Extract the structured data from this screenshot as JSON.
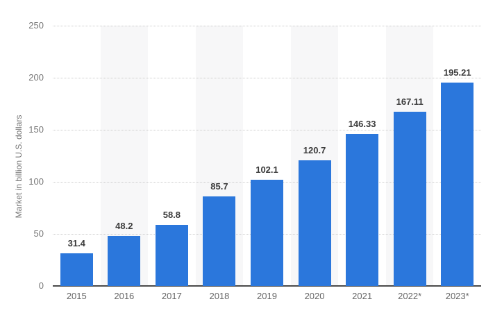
{
  "chart_data": {
    "type": "bar",
    "title": "",
    "xlabel": "",
    "ylabel": "Market in billion U.S. dollars",
    "categories": [
      "2015",
      "2016",
      "2017",
      "2018",
      "2019",
      "2020",
      "2021",
      "2022*",
      "2023*"
    ],
    "values": [
      31.4,
      48.2,
      58.8,
      85.7,
      102.1,
      120.7,
      146.33,
      167.11,
      195.21
    ],
    "value_labels": [
      "31.4",
      "48.2",
      "58.8",
      "85.7",
      "102.1",
      "120.7",
      "146.33",
      "167.11",
      "195.21"
    ],
    "ylim": [
      0,
      250
    ],
    "ytick_values": [
      0,
      50,
      100,
      150,
      200,
      250
    ],
    "ytick_labels": [
      "0",
      "50",
      "100",
      "150",
      "200",
      "250"
    ],
    "grid": "horizontal-dotted",
    "legend": "none",
    "banded_columns": [
      1,
      3,
      5,
      7
    ],
    "colors": {
      "bar": "#2b77dc",
      "column_band": "#f7f7f8",
      "gridline": "#cbcbcb",
      "axis_line": "#4a4a4a",
      "tick_label": "#757575",
      "category_label": "#666666",
      "value_label": "#3b3b3b",
      "background": "#ffffff"
    }
  }
}
